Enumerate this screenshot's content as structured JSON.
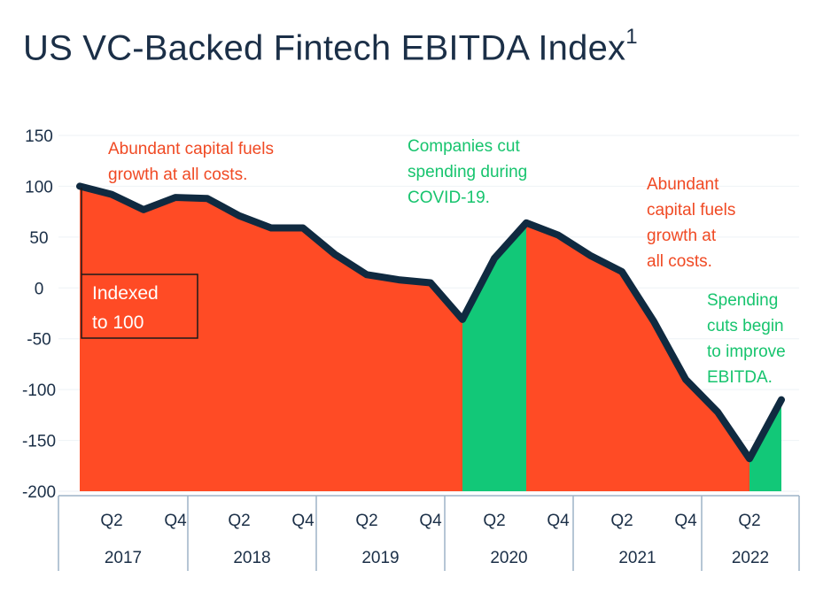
{
  "title": "US VC-Backed Fintech EBITDA Index",
  "title_footnote": "1",
  "colors": {
    "growth": "#ff4b25",
    "cuts": "#12c878",
    "line": "#102a40",
    "annotation_red": "#f04a24",
    "annotation_green": "#17c46e",
    "axis": "#9db3c7",
    "text": "#1b2f47"
  },
  "chart_data": {
    "type": "area",
    "title": "US VC-Backed Fintech EBITDA Index",
    "xlabel": "",
    "ylabel": "",
    "ylim": [
      -200,
      150
    ],
    "yticks": [
      150,
      100,
      50,
      0,
      -50,
      -100,
      -150,
      -200
    ],
    "grid": false,
    "x": [
      "Q1 2017",
      "Q2 2017",
      "Q3 2017",
      "Q4 2017",
      "Q1 2018",
      "Q2 2018",
      "Q3 2018",
      "Q4 2018",
      "Q1 2019",
      "Q2 2019",
      "Q3 2019",
      "Q4 2019",
      "Q1 2020",
      "Q2 2020",
      "Q3 2020",
      "Q4 2020",
      "Q1 2021",
      "Q2 2021",
      "Q3 2021",
      "Q4 2021",
      "Q1 2022",
      "Q2 2022",
      "Q3 2022"
    ],
    "series": [
      {
        "name": "EBITDA Index",
        "values": [
          100,
          92,
          77,
          89,
          88,
          71,
          59,
          59,
          33,
          13,
          8,
          5,
          -31,
          29,
          64,
          52,
          32,
          16,
          -33,
          -90,
          -122,
          -168,
          -110
        ]
      }
    ],
    "shading": [
      {
        "from": 0,
        "to": 12,
        "phase": "growth"
      },
      {
        "from": 12,
        "to": 14,
        "phase": "cuts"
      },
      {
        "from": 14,
        "to": 21,
        "phase": "growth"
      },
      {
        "from": 21,
        "to": 22,
        "phase": "cuts"
      }
    ],
    "x_quarter_labels": [
      {
        "index": 1,
        "label": "Q2"
      },
      {
        "index": 3,
        "label": "Q4"
      },
      {
        "index": 5,
        "label": "Q2"
      },
      {
        "index": 7,
        "label": "Q4"
      },
      {
        "index": 9,
        "label": "Q2"
      },
      {
        "index": 11,
        "label": "Q4"
      },
      {
        "index": 13,
        "label": "Q2"
      },
      {
        "index": 15,
        "label": "Q4"
      },
      {
        "index": 17,
        "label": "Q2"
      },
      {
        "index": 19,
        "label": "Q4"
      },
      {
        "index": 21,
        "label": "Q2"
      }
    ],
    "years": [
      "2017",
      "2018",
      "2019",
      "2020",
      "2021",
      "2022"
    ],
    "indexed_note": [
      "Indexed",
      "to 100"
    ],
    "annotations": [
      {
        "color": "red",
        "lines": [
          "Abundant capital fuels",
          "growth at all costs."
        ]
      },
      {
        "color": "green",
        "lines": [
          "Companies cut",
          "spending during",
          "COVID-19."
        ]
      },
      {
        "color": "red",
        "lines": [
          "Abundant",
          "capital fuels",
          "growth at",
          "all costs."
        ]
      },
      {
        "color": "green",
        "lines": [
          "Spending",
          "cuts begin",
          "to improve",
          "EBITDA."
        ]
      }
    ]
  }
}
